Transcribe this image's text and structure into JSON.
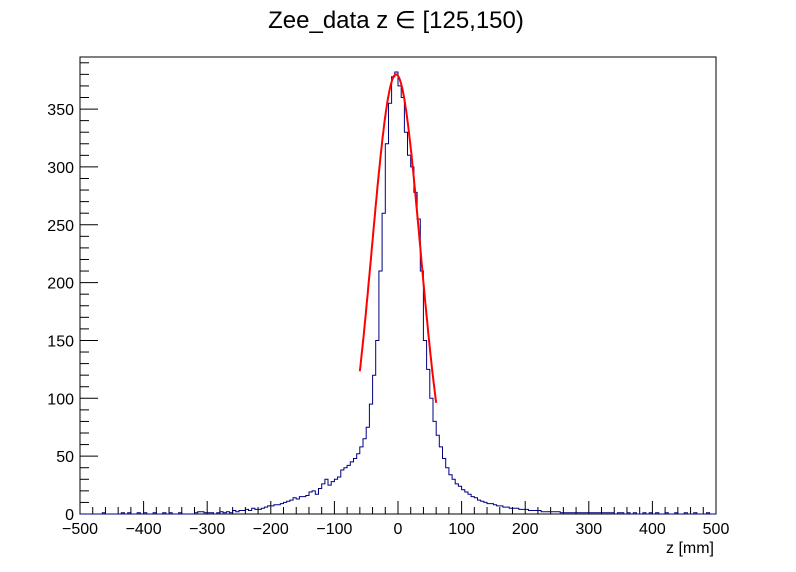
{
  "chart_data": {
    "type": "histogram",
    "title": "Zee_data z  ∈ [125,150)",
    "xlabel": "z [mm]",
    "ylabel": "",
    "xlim": [
      -500,
      500
    ],
    "ylim": [
      0,
      395
    ],
    "x_ticks": [
      -500,
      -400,
      -300,
      -200,
      -100,
      0,
      100,
      200,
      300,
      400,
      500
    ],
    "x_tick_labels": [
      "−500",
      "−400",
      "−300",
      "−200",
      "−100",
      "0",
      "100",
      "200",
      "300",
      "400",
      "500"
    ],
    "y_ticks": [
      0,
      50,
      100,
      150,
      200,
      250,
      300,
      350
    ],
    "y_tick_labels": [
      "0",
      "50",
      "100",
      "150",
      "200",
      "250",
      "300",
      "350"
    ],
    "grid": false,
    "legend": "none",
    "colors": {
      "histogram": "#000080",
      "fit": "#ff0000",
      "frame": "#000000"
    },
    "bin_width": 5,
    "histogram": {
      "bin_edges_start": -500,
      "values": [
        0,
        0,
        0,
        0,
        0,
        0,
        0,
        1,
        0,
        0,
        0,
        0,
        0,
        1,
        0,
        1,
        0,
        0,
        1,
        0,
        1,
        0,
        0,
        1,
        0,
        0,
        1,
        0,
        1,
        0,
        0,
        1,
        0,
        0,
        0,
        0,
        1,
        2,
        2,
        1,
        1,
        1,
        0,
        1,
        2,
        1,
        2,
        1,
        3,
        2,
        3,
        3,
        4,
        3,
        5,
        4,
        4,
        5,
        6,
        7,
        7,
        8,
        8,
        9,
        10,
        11,
        12,
        14,
        13,
        15,
        15,
        16,
        19,
        20,
        17,
        22,
        26,
        30,
        25,
        28,
        30,
        32,
        38,
        40,
        42,
        45,
        48,
        52,
        58,
        65,
        75,
        95,
        120,
        150,
        210,
        260,
        320,
        355,
        378,
        382,
        370,
        360,
        330,
        310,
        300,
        278,
        255,
        210,
        150,
        125,
        100,
        80,
        68,
        58,
        48,
        40,
        34,
        30,
        26,
        24,
        21,
        19,
        17,
        15,
        14,
        12,
        11,
        10,
        9,
        9,
        8,
        7,
        7,
        6,
        6,
        5,
        5,
        5,
        4,
        4,
        4,
        3,
        3,
        3,
        3,
        2,
        2,
        2,
        2,
        2,
        2,
        1,
        1,
        1,
        1,
        1,
        1,
        1,
        1,
        1,
        1,
        1,
        1,
        1,
        1,
        1,
        1,
        1,
        0,
        1,
        1,
        0,
        1,
        0,
        1,
        0,
        0,
        1,
        0,
        1,
        0,
        1,
        0,
        0,
        1,
        0,
        0,
        1,
        0,
        0,
        1,
        0,
        0,
        1,
        0,
        0,
        0,
        1,
        0,
        0
      ]
    },
    "fit": {
      "function": "gaussian",
      "amplitude": 380,
      "mean": -3,
      "sigma": 38,
      "x_range": [
        -60,
        60
      ]
    }
  }
}
